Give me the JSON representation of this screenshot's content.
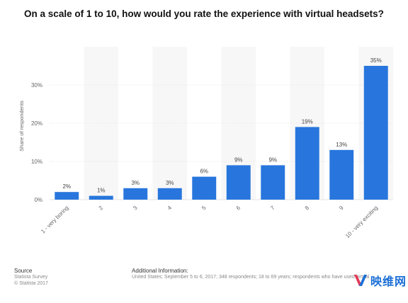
{
  "title": "On a scale of 1 to 10, how would you rate the experience with virtual headsets?",
  "chart_data": {
    "type": "bar",
    "categories": [
      "1 - very boring",
      "2",
      "3",
      "4",
      "5",
      "6",
      "7",
      "8",
      "9",
      "10 - very exciting"
    ],
    "values": [
      2,
      1,
      3,
      3,
      6,
      9,
      9,
      19,
      13,
      35
    ],
    "value_labels": [
      "2%",
      "1%",
      "3%",
      "3%",
      "6%",
      "9%",
      "9%",
      "19%",
      "13%",
      "35%"
    ],
    "ylabel": "Share of respondents",
    "ylim": [
      0,
      40
    ],
    "yticks": [
      0,
      10,
      20,
      30
    ],
    "ytick_labels": [
      "0%",
      "10%",
      "20%",
      "30%"
    ],
    "bar_color": "#2876dd",
    "grid": true,
    "legend": "none"
  },
  "footer": {
    "source_heading": "Source",
    "source_line1": "Statista Survey",
    "source_line2": "© Statista 2017",
    "info_heading": "Additional Information:",
    "info_text": "United States; September 5 to 6, 2017; 348 respondents; 18 to 69 years; respondents who have used virtual"
  },
  "watermark": {
    "text": "映维网",
    "icon": "yivian-logo-icon",
    "color": "#1b6fd6"
  }
}
